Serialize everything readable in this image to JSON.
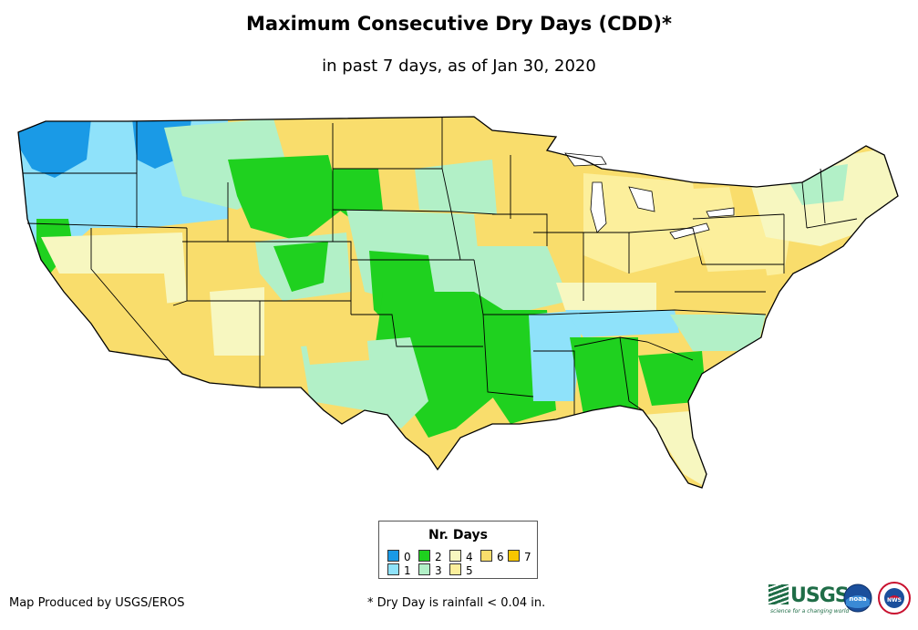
{
  "header": {
    "title": "Maximum Consecutive Dry Days (CDD)*",
    "subtitle": "in past 7 days, as of Jan 30, 2020"
  },
  "map": {
    "region": "Contiguous United States",
    "category_colors": {
      "0": "#1a9ae6",
      "1": "#8fe2fa",
      "2": "#1fd11f",
      "3": "#b2f0c7",
      "4": "#f7f7c0",
      "5": "#fcef9c",
      "6": "#f9dd6c",
      "7": "#f7c600"
    }
  },
  "legend": {
    "title": "Nr. Days",
    "items": [
      {
        "label": "0",
        "color": "#1a9ae6"
      },
      {
        "label": "1",
        "color": "#8fe2fa"
      },
      {
        "label": "2",
        "color": "#1fd11f"
      },
      {
        "label": "3",
        "color": "#b2f0c7"
      },
      {
        "label": "4",
        "color": "#f7f7c0"
      },
      {
        "label": "5",
        "color": "#fcef9c"
      },
      {
        "label": "6",
        "color": "#f9dd6c"
      },
      {
        "label": "7",
        "color": "#f7c600"
      }
    ]
  },
  "footer": {
    "credit": "Map Produced by USGS/EROS",
    "footnote": "* Dry Day is rainfall < 0.04 in.",
    "usgs_logo_text": "USGS",
    "usgs_tagline": "science for a changing world",
    "noaa_logo_text": "noaa",
    "nws_logo_text": "NWS"
  }
}
